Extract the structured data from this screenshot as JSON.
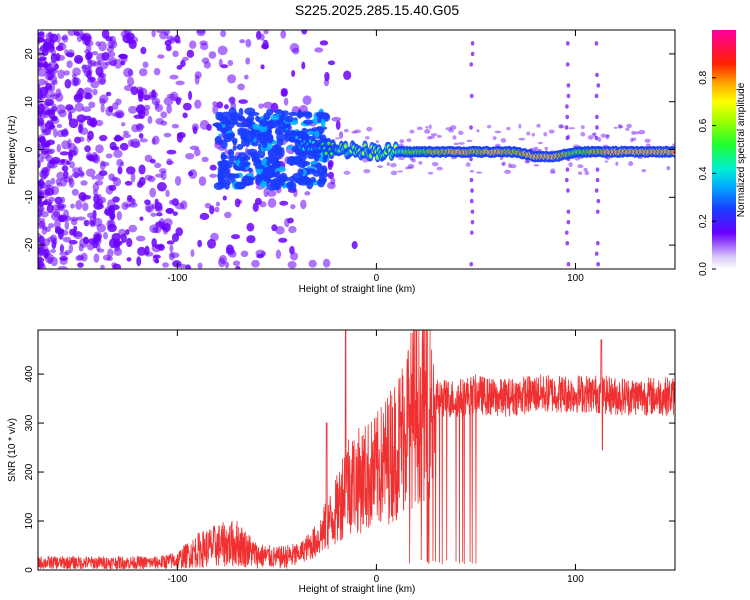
{
  "title": "S225.2025.285.15.40.G05",
  "chart_data": [
    {
      "type": "heatmap",
      "xlabel": "Height of straight line (km)",
      "ylabel": "Frequency (Hz)",
      "xlim": [
        -170,
        150
      ],
      "ylim": [
        -25,
        25
      ],
      "x_ticks": [
        -100,
        0,
        100
      ],
      "y_ticks": [
        -20,
        -10,
        0,
        10,
        20
      ],
      "colorbar": {
        "label": "Normalized spectral amplitude",
        "range": [
          0,
          1
        ],
        "ticks": [
          0.0,
          0.2,
          0.4,
          0.6,
          0.8
        ]
      },
      "ridge": {
        "description_free": true,
        "x": [
          -40,
          -30,
          -20,
          -10,
          0,
          10,
          20,
          30,
          40,
          50,
          60,
          70,
          80,
          90,
          100,
          110,
          120,
          130,
          140,
          150
        ],
        "freq": [
          1.5,
          0.5,
          0,
          0,
          -0.5,
          -0.5,
          -0.5,
          -0.5,
          -0.5,
          -0.5,
          -0.5,
          -0.5,
          -1.5,
          -1.5,
          -0.5,
          -0.5,
          -0.5,
          -0.5,
          -0.5,
          -0.5
        ],
        "amplitude": [
          0.35,
          0.4,
          0.5,
          0.6,
          0.6,
          0.65,
          0.7,
          0.8,
          0.9,
          0.85,
          0.9,
          0.8,
          0.95,
          0.9,
          0.7,
          0.8,
          0.95,
          0.95,
          0.95,
          0.9
        ]
      }
    },
    {
      "type": "line",
      "xlabel": "Height of straight line (km)",
      "ylabel": "SNR (10 * v/v)",
      "xlim": [
        -170,
        150
      ],
      "ylim": [
        0,
        490
      ],
      "x_ticks": [
        -100,
        0,
        100
      ],
      "y_ticks": [
        0,
        100,
        200,
        300,
        400
      ],
      "series": [
        {
          "color": "#f03030",
          "x": [
            -170,
            -150,
            -130,
            -110,
            -100,
            -90,
            -80,
            -70,
            -60,
            -50,
            -40,
            -30,
            -20,
            -15,
            -10,
            0,
            10,
            20,
            30,
            40,
            50,
            60,
            70,
            80,
            90,
            100,
            110,
            120,
            130,
            140,
            150
          ],
          "values": [
            15,
            15,
            15,
            15,
            20,
            40,
            50,
            55,
            30,
            25,
            30,
            60,
            120,
            180,
            180,
            200,
            250,
            330,
            350,
            350,
            360,
            350,
            355,
            360,
            360,
            360,
            360,
            355,
            355,
            355,
            355
          ]
        }
      ]
    }
  ]
}
